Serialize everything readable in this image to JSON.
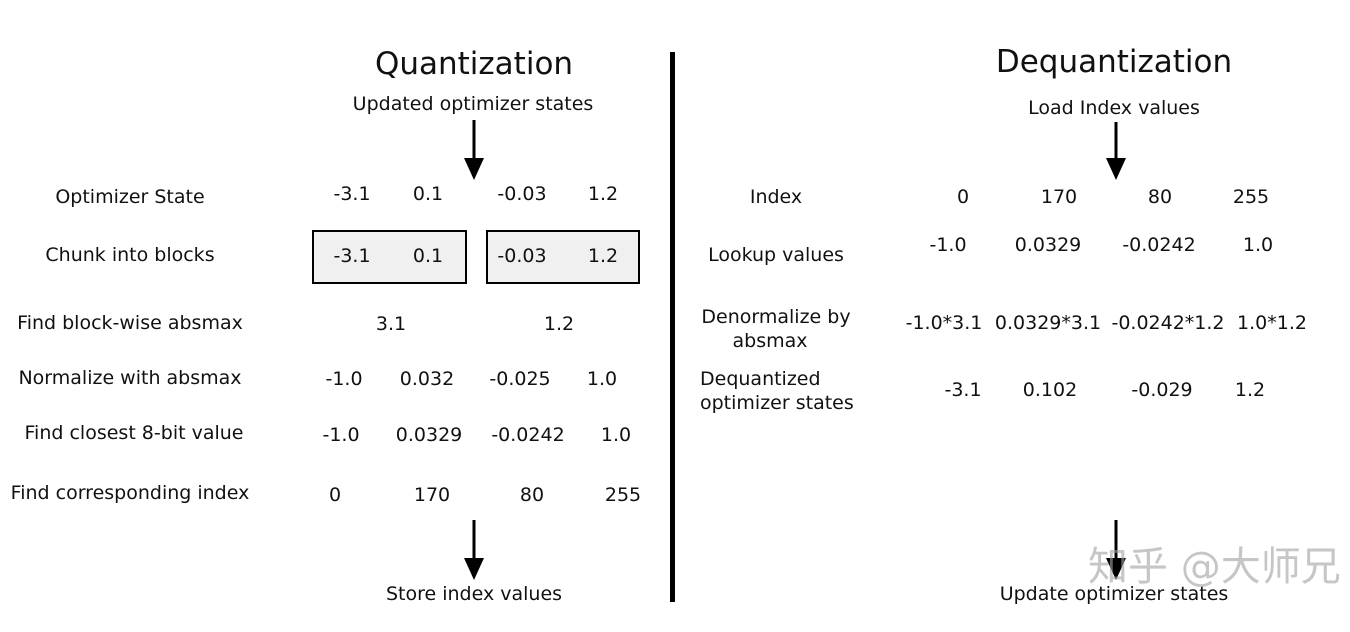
{
  "quantization": {
    "title": "Quantization",
    "input_label": "Updated optimizer states",
    "output_label": "Store index values",
    "rows": [
      {
        "label": "Optimizer State",
        "values": [
          "-3.1",
          "0.1",
          "-0.03",
          "1.2"
        ]
      },
      {
        "label": "Chunk into blocks",
        "values": [
          "-3.1",
          "0.1",
          "-0.03",
          "1.2"
        ]
      },
      {
        "label": "Find block-wise absmax",
        "values": [
          "3.1",
          "1.2"
        ]
      },
      {
        "label": "Normalize with absmax",
        "values": [
          "-1.0",
          "0.032",
          "-0.025",
          "1.0"
        ]
      },
      {
        "label": "Find closest 8-bit value",
        "values": [
          "-1.0",
          "0.0329",
          "-0.0242",
          "1.0"
        ]
      },
      {
        "label": "Find corresponding index",
        "values": [
          "0",
          "170",
          "80",
          "255"
        ]
      }
    ]
  },
  "dequantization": {
    "title": "Dequantization",
    "input_label": "Load Index values",
    "output_label": "Update optimizer states",
    "rows": [
      {
        "label": "Index",
        "values": [
          "0",
          "170",
          "80",
          "255"
        ]
      },
      {
        "label": "Lookup values",
        "values": [
          "-1.0",
          "0.0329",
          "-0.0242",
          "1.0"
        ]
      },
      {
        "label_line1": "Denormalize by",
        "label_line2": "absmax",
        "values": [
          "-1.0*3.1",
          "0.0329*3.1",
          "-0.0242*1.2",
          "1.0*1.2"
        ]
      },
      {
        "label_line1": "Dequantized",
        "label_line2": "optimizer states",
        "values": [
          "-3.1",
          "0.102",
          "-0.029",
          "1.2"
        ]
      }
    ]
  },
  "watermark": "知乎 @大师兄"
}
